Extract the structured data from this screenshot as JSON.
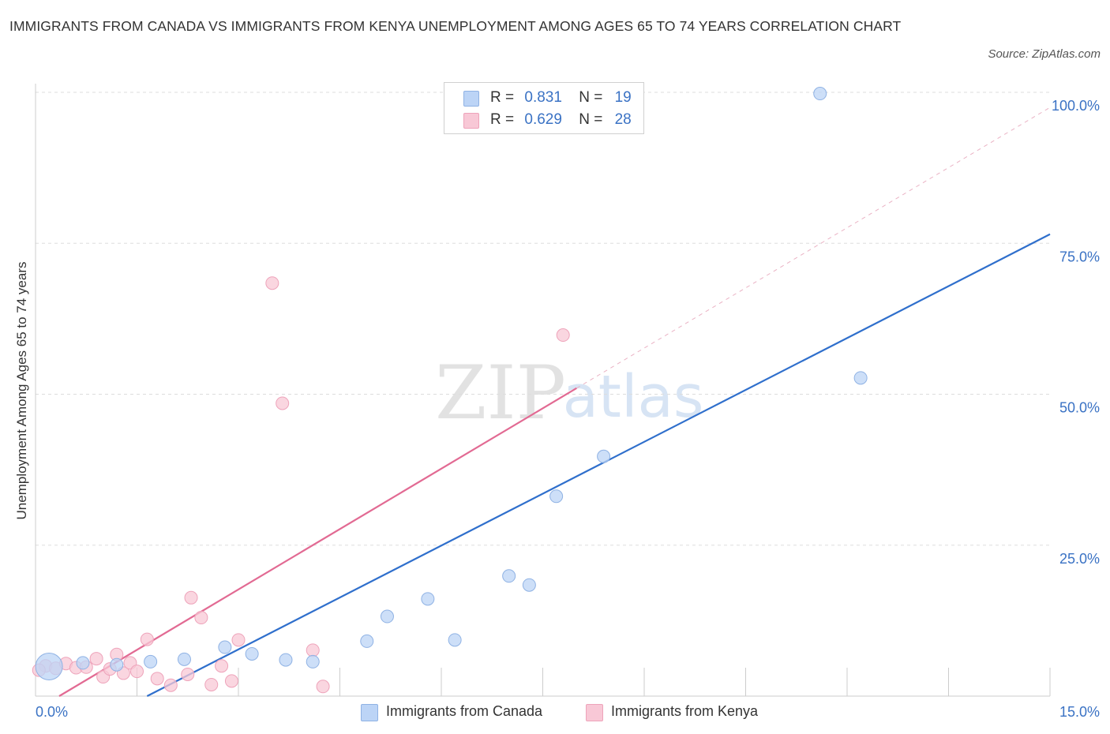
{
  "title": "IMMIGRANTS FROM CANADA VS IMMIGRANTS FROM KENYA UNEMPLOYMENT AMONG AGES 65 TO 74 YEARS CORRELATION CHART",
  "source": "Source: ZipAtlas.com",
  "watermark": {
    "zip": "ZIP",
    "atlas": "atlas"
  },
  "legend": {
    "canada": {
      "r_label": "R =",
      "r_value": "0.831",
      "n_label": "N =",
      "n_value": "19"
    },
    "kenya": {
      "r_label": "R =",
      "r_value": "0.629",
      "n_label": "N =",
      "n_value": "28"
    }
  },
  "bottom_legend": {
    "canada": "Immigrants from Canada",
    "kenya": "Immigrants from Kenya"
  },
  "colors": {
    "canada_fill": "#bcd4f6",
    "canada_stroke": "#8fb2e4",
    "canada_line": "#2f6fcc",
    "kenya_fill": "#f8c8d6",
    "kenya_stroke": "#eea3ba",
    "kenya_line": "#e26a93",
    "tick_text": "#3a72c4",
    "grid": "#dddddd"
  },
  "chart_data": {
    "type": "scatter",
    "title": "IMMIGRANTS FROM CANADA VS IMMIGRANTS FROM KENYA UNEMPLOYMENT AMONG AGES 65 TO 74 YEARS CORRELATION CHART",
    "xlabel": "",
    "ylabel": "Unemployment Among Ages 65 to 74 years",
    "xlim": [
      0,
      15
    ],
    "ylim": [
      0,
      100
    ],
    "x_tick_labels": [
      "0.0%",
      "15.0%"
    ],
    "y_ticks": [
      25,
      50,
      75,
      100
    ],
    "y_tick_labels": [
      "25.0%",
      "50.0%",
      "75.0%",
      "100.0%"
    ],
    "grid": true,
    "legend_position": "top-center",
    "series": [
      {
        "name": "Immigrants from Canada",
        "points": [
          {
            "x": 0.2,
            "y": 4.9,
            "big": true
          },
          {
            "x": 0.7,
            "y": 5.5
          },
          {
            "x": 1.2,
            "y": 5.2
          },
          {
            "x": 1.7,
            "y": 5.7
          },
          {
            "x": 2.2,
            "y": 6.1
          },
          {
            "x": 2.8,
            "y": 8.1
          },
          {
            "x": 3.2,
            "y": 7.0
          },
          {
            "x": 3.7,
            "y": 6.0
          },
          {
            "x": 4.1,
            "y": 5.7
          },
          {
            "x": 4.9,
            "y": 9.1
          },
          {
            "x": 5.2,
            "y": 13.2
          },
          {
            "x": 5.8,
            "y": 16.1
          },
          {
            "x": 6.2,
            "y": 9.3
          },
          {
            "x": 7.0,
            "y": 19.9
          },
          {
            "x": 7.3,
            "y": 18.4
          },
          {
            "x": 7.7,
            "y": 33.1
          },
          {
            "x": 8.4,
            "y": 39.7
          },
          {
            "x": 11.6,
            "y": 99.8
          },
          {
            "x": 12.2,
            "y": 52.7
          }
        ],
        "trend": {
          "x": [
            1.65,
            15.0
          ],
          "y": [
            0.0,
            76.5
          ]
        }
      },
      {
        "name": "Immigrants from Kenya",
        "points": [
          {
            "x": 0.15,
            "y": 5.0
          },
          {
            "x": 0.3,
            "y": 4.6
          },
          {
            "x": 0.45,
            "y": 5.4
          },
          {
            "x": 0.6,
            "y": 4.7
          },
          {
            "x": 0.75,
            "y": 4.8
          },
          {
            "x": 0.9,
            "y": 6.2
          },
          {
            "x": 1.0,
            "y": 3.2
          },
          {
            "x": 1.1,
            "y": 4.5
          },
          {
            "x": 1.2,
            "y": 6.9
          },
          {
            "x": 1.3,
            "y": 3.8
          },
          {
            "x": 1.4,
            "y": 5.5
          },
          {
            "x": 1.5,
            "y": 4.1
          },
          {
            "x": 1.65,
            "y": 9.4
          },
          {
            "x": 1.8,
            "y": 2.9
          },
          {
            "x": 2.0,
            "y": 1.8
          },
          {
            "x": 2.25,
            "y": 3.6
          },
          {
            "x": 2.3,
            "y": 16.3
          },
          {
            "x": 2.45,
            "y": 13.0
          },
          {
            "x": 2.6,
            "y": 1.9
          },
          {
            "x": 2.75,
            "y": 5.0
          },
          {
            "x": 2.9,
            "y": 2.5
          },
          {
            "x": 3.0,
            "y": 9.3
          },
          {
            "x": 3.5,
            "y": 68.4
          },
          {
            "x": 3.65,
            "y": 48.5
          },
          {
            "x": 4.1,
            "y": 7.6
          },
          {
            "x": 4.25,
            "y": 1.6
          },
          {
            "x": 7.8,
            "y": 59.8
          },
          {
            "x": 0.05,
            "y": 4.3
          }
        ],
        "trend": {
          "x": [
            0.35,
            8.0
          ],
          "y": [
            0.0,
            51.0
          ]
        },
        "trend_extension": {
          "x": [
            8.0,
            15.0
          ],
          "y": [
            51.0,
            97.5
          ]
        }
      }
    ]
  }
}
